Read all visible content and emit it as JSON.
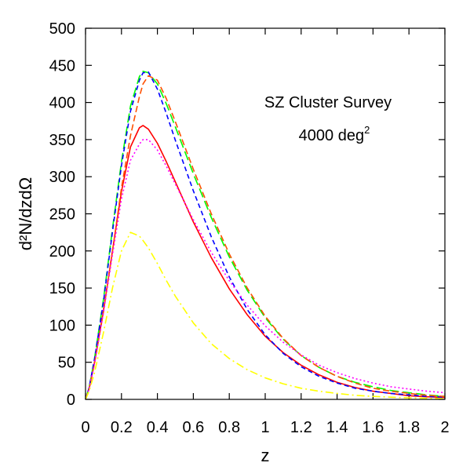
{
  "chart_data": {
    "type": "line",
    "title": "",
    "xlabel": "z",
    "ylabel": "d²N/dzdΩ",
    "xlim": [
      0,
      2
    ],
    "ylim": [
      0,
      500
    ],
    "xticks": [
      "0",
      "0.2",
      "0.4",
      "0.6",
      "0.8",
      "1",
      "1.2",
      "1.4",
      "1.6",
      "1.8",
      "2"
    ],
    "yticks": [
      "0",
      "50",
      "100",
      "150",
      "200",
      "250",
      "300",
      "350",
      "400",
      "450",
      "500"
    ],
    "grid": false,
    "legend": "none",
    "annotations": {
      "line1": "SZ Cluster Survey",
      "line2_base": "4000 deg",
      "line2_sup": "2"
    },
    "x": [
      0,
      0.02,
      0.05,
      0.1,
      0.15,
      0.2,
      0.25,
      0.3,
      0.32,
      0.35,
      0.4,
      0.45,
      0.5,
      0.6,
      0.7,
      0.8,
      0.9,
      1.0,
      1.1,
      1.2,
      1.3,
      1.4,
      1.5,
      1.6,
      1.7,
      1.8,
      1.9,
      2.0
    ],
    "series": [
      {
        "color": "#ff0000",
        "style": "solid",
        "values": [
          0,
          15,
          50,
          120,
          200,
          280,
          340,
          366,
          369,
          364,
          345,
          320,
          293,
          239,
          191,
          149,
          114,
          85,
          63,
          46,
          33,
          23,
          16,
          11,
          8,
          5,
          3.5,
          2.5
        ]
      },
      {
        "color": "#00ff00",
        "style": "long-dash",
        "values": [
          0,
          16,
          55,
          135,
          230,
          320,
          395,
          435,
          442,
          440,
          425,
          398,
          367,
          304,
          245,
          192,
          147,
          110,
          81,
          59,
          43,
          31,
          23,
          17,
          12,
          9,
          6,
          4
        ]
      },
      {
        "color": "#0000ff",
        "style": "short-dash",
        "values": [
          0,
          16,
          54,
          132,
          226,
          315,
          388,
          430,
          440,
          441,
          418,
          385,
          349,
          281,
          219,
          165,
          121,
          87,
          62,
          44,
          31,
          22,
          15,
          11,
          8,
          6,
          4,
          3
        ]
      },
      {
        "color": "#ff5000",
        "style": "dash",
        "values": [
          0,
          14,
          48,
          118,
          200,
          285,
          355,
          408,
          425,
          436,
          430,
          405,
          374,
          310,
          250,
          196,
          150,
          112,
          82,
          59,
          43,
          31,
          22,
          15,
          11,
          8,
          5.5,
          4
        ]
      },
      {
        "color": "#ff00ff",
        "style": "dotted",
        "values": [
          0,
          14,
          48,
          117,
          195,
          270,
          322,
          344,
          350,
          350,
          336,
          314,
          290,
          242,
          198,
          160,
          127,
          99,
          77,
          60,
          46,
          36,
          28,
          22,
          17,
          14,
          11,
          9
        ]
      },
      {
        "color": "#ffff00",
        "style": "dash-dot",
        "values": [
          0,
          11,
          36,
          90,
          150,
          200,
          225,
          220,
          214,
          204,
          183,
          160,
          139,
          103,
          75,
          55,
          40,
          29,
          21,
          15,
          11,
          8,
          5.5,
          4,
          3,
          2,
          1.5,
          1
        ]
      }
    ]
  }
}
